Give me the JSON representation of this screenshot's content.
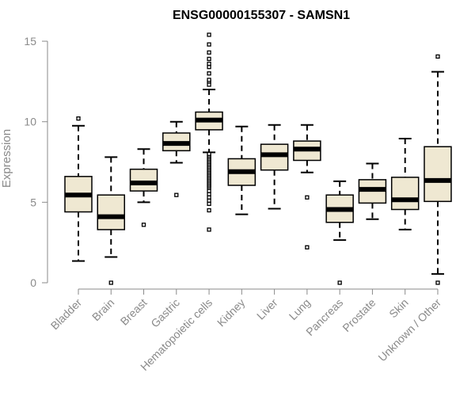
{
  "chart_data": {
    "type": "box",
    "title": "ENSG00000155307 - SAMSN1",
    "xlabel": "",
    "ylabel": "Expression",
    "ylim": [
      0,
      15
    ],
    "yticks": [
      0,
      5,
      10,
      15
    ],
    "categories": [
      "Bladder",
      "Brain",
      "Breast",
      "Gastric",
      "Hematopoietic cells",
      "Kidney",
      "Liver",
      "Lung",
      "Pancreas",
      "Prostate",
      "Skin",
      "Unknown / Other"
    ],
    "boxes": [
      {
        "name": "Bladder",
        "whisker_low": 1.35,
        "q1": 4.4,
        "median": 5.45,
        "q3": 6.6,
        "whisker_high": 9.75,
        "outliers": [
          10.2
        ]
      },
      {
        "name": "Brain",
        "whisker_low": 1.6,
        "q1": 3.3,
        "median": 4.1,
        "q3": 5.45,
        "whisker_high": 7.8,
        "outliers": [
          0.0
        ]
      },
      {
        "name": "Breast",
        "whisker_low": 5.0,
        "q1": 5.7,
        "median": 6.2,
        "q3": 7.05,
        "whisker_high": 8.3,
        "outliers": [
          3.6
        ]
      },
      {
        "name": "Gastric",
        "whisker_low": 7.45,
        "q1": 8.2,
        "median": 8.65,
        "q3": 9.3,
        "whisker_high": 10.0,
        "outliers": [
          5.45
        ]
      },
      {
        "name": "Hematopoietic cells",
        "whisker_low": 8.1,
        "q1": 9.5,
        "median": 10.1,
        "q3": 10.6,
        "whisker_high": 12.0,
        "outliers": [
          3.3,
          4.5,
          4.9,
          5.1,
          5.3,
          5.5,
          5.7,
          5.9,
          6.0,
          6.1,
          6.2,
          6.3,
          6.4,
          6.5,
          6.6,
          6.7,
          6.8,
          6.9,
          7.0,
          7.1,
          7.2,
          7.3,
          7.4,
          7.5,
          7.6,
          7.7,
          7.8,
          7.9,
          8.0,
          12.3,
          12.5,
          12.6,
          13.0,
          13.4,
          13.6,
          13.9,
          14.3,
          14.8,
          15.4
        ]
      },
      {
        "name": "Kidney",
        "whisker_low": 4.25,
        "q1": 6.05,
        "median": 6.9,
        "q3": 7.7,
        "whisker_high": 9.7,
        "outliers": []
      },
      {
        "name": "Liver",
        "whisker_low": 4.6,
        "q1": 7.0,
        "median": 7.95,
        "q3": 8.6,
        "whisker_high": 9.8,
        "outliers": []
      },
      {
        "name": "Lung",
        "whisker_low": 6.85,
        "q1": 7.6,
        "median": 8.3,
        "q3": 8.8,
        "whisker_high": 9.8,
        "outliers": [
          5.3,
          2.2
        ]
      },
      {
        "name": "Pancreas",
        "whisker_low": 2.65,
        "q1": 3.75,
        "median": 4.55,
        "q3": 5.45,
        "whisker_high": 6.3,
        "outliers": [
          0.0
        ]
      },
      {
        "name": "Prostate",
        "whisker_low": 3.95,
        "q1": 4.95,
        "median": 5.8,
        "q3": 6.4,
        "whisker_high": 7.4,
        "outliers": []
      },
      {
        "name": "Skin",
        "whisker_low": 3.3,
        "q1": 4.55,
        "median": 5.15,
        "q3": 6.55,
        "whisker_high": 8.95,
        "outliers": []
      },
      {
        "name": "Unknown / Other",
        "whisker_low": 0.55,
        "q1": 5.05,
        "median": 6.35,
        "q3": 8.45,
        "whisker_high": 13.1,
        "outliers": [
          14.05,
          0.0
        ]
      }
    ],
    "colors": {
      "box_fill": "#efe8d2",
      "stroke": "#000000",
      "axis": "#8a8a8a"
    },
    "grid": false,
    "legend": "none"
  }
}
